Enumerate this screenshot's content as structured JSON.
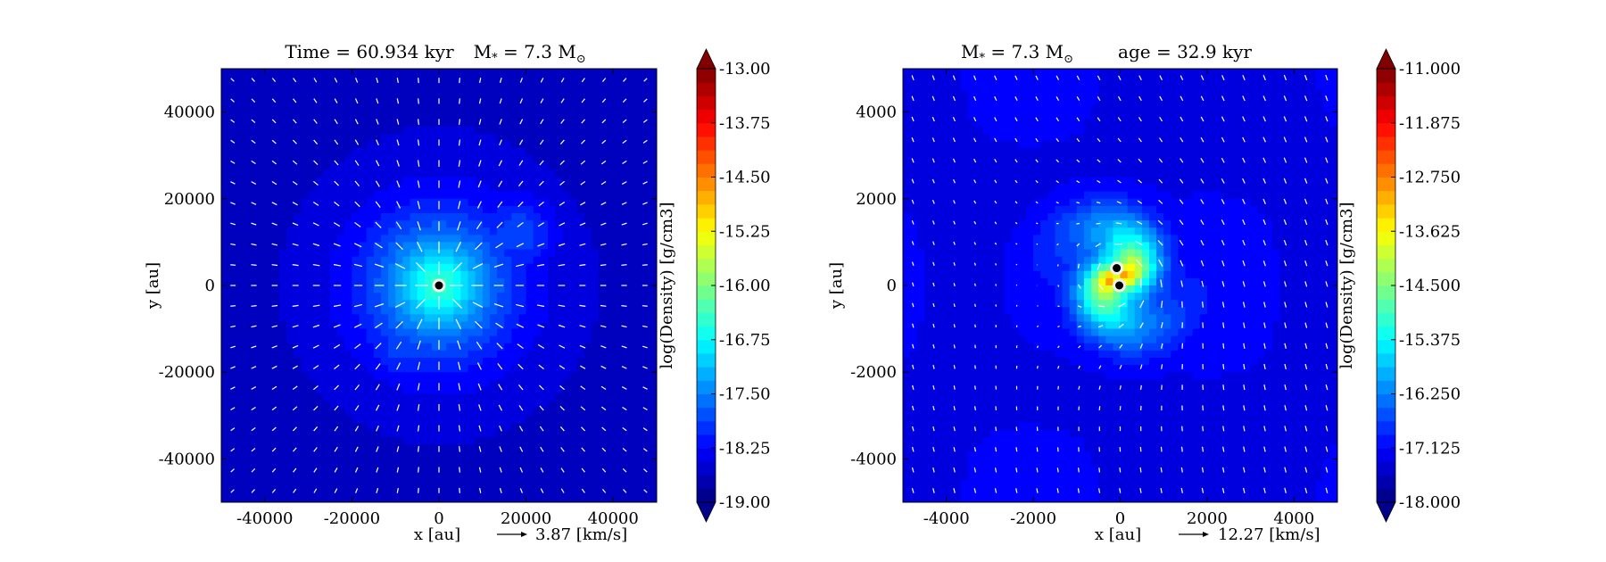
{
  "chart_data": [
    {
      "type": "heatmap",
      "title": "Time = 60.934 kyr    M$_*$ = 7.3 M$_\\odot$",
      "title_parts": {
        "time": "Time = 60.934 kyr",
        "mass": "M",
        "mass_sub": "*",
        "mass_value": " = 7.3 M",
        "mass_sun": "⊙"
      },
      "xlabel": "x [au]",
      "ylabel": "y [au]",
      "xlim": [
        -50000,
        50000
      ],
      "ylim": [
        -50000,
        50000
      ],
      "xticks": [
        -40000,
        -20000,
        0,
        20000,
        40000
      ],
      "xtick_labels": [
        "-40000",
        "-20000",
        "0",
        "20000",
        "40000"
      ],
      "yticks": [
        -40000,
        -20000,
        0,
        20000,
        40000
      ],
      "ytick_labels": [
        "-40000",
        "-20000",
        "0",
        "20000",
        "40000"
      ],
      "vector_key_label": "3.87 [km/s]",
      "colorbar": {
        "label": "log(Density) [g/cm3]",
        "min": -19.0,
        "max": -13.0,
        "ticks": [
          -13.0,
          -13.75,
          -14.5,
          -15.25,
          -16.0,
          -16.75,
          -17.5,
          -18.25,
          -19.0
        ],
        "tick_labels": [
          "-13.00",
          "-13.75",
          "-14.50",
          "-15.25",
          "-16.00",
          "-16.75",
          "-17.50",
          "-18.25",
          "-19.00"
        ]
      },
      "sinks": [
        {
          "x": 0,
          "y": 0
        }
      ],
      "field": {
        "background": -18.6,
        "peak": -16.3,
        "core_radius": 14000,
        "lobes": [
          [
            18000,
            12000,
            -17.8,
            9000
          ],
          [
            -9000,
            -14000,
            -17.9,
            9000
          ]
        ]
      },
      "velocity_pattern": "infall"
    },
    {
      "type": "heatmap",
      "title": "M$_*$ = 7.3 M$_\\odot$    age = 32.9 kyr",
      "title_parts": {
        "mass": "M",
        "mass_sub": "*",
        "mass_value": " = 7.3 M",
        "mass_sun": "⊙",
        "age": "age = 32.9 kyr"
      },
      "xlabel": "x [au]",
      "ylabel": "y [au]",
      "xlim": [
        -5000,
        5000
      ],
      "ylim": [
        -5000,
        5000
      ],
      "xticks": [
        -4000,
        -2000,
        0,
        2000,
        4000
      ],
      "xtick_labels": [
        "-4000",
        "-2000",
        "0",
        "2000",
        "4000"
      ],
      "yticks": [
        -4000,
        -2000,
        0,
        2000,
        4000
      ],
      "ytick_labels": [
        "-4000",
        "-2000",
        "0",
        "2000",
        "4000"
      ],
      "vector_key_label": "12.27 [km/s]",
      "colorbar": {
        "label": "log(Density) [g/cm3]",
        "min": -18.0,
        "max": -11.0,
        "ticks": [
          -11.0,
          -11.875,
          -12.75,
          -13.625,
          -14.5,
          -15.375,
          -16.25,
          -17.125,
          -18.0
        ],
        "tick_labels": [
          "-11.000",
          "-11.875",
          "-12.750",
          "-13.625",
          "-14.500",
          "-15.375",
          "-16.250",
          "-17.125",
          "-18.000"
        ]
      },
      "sinks": [
        {
          "x": -80,
          "y": 400
        },
        {
          "x": -20,
          "y": 0
        }
      ],
      "field": {
        "background": -17.3,
        "peak": -13.8,
        "core_radius": 1600
      },
      "velocity_pattern": "rotation"
    }
  ]
}
